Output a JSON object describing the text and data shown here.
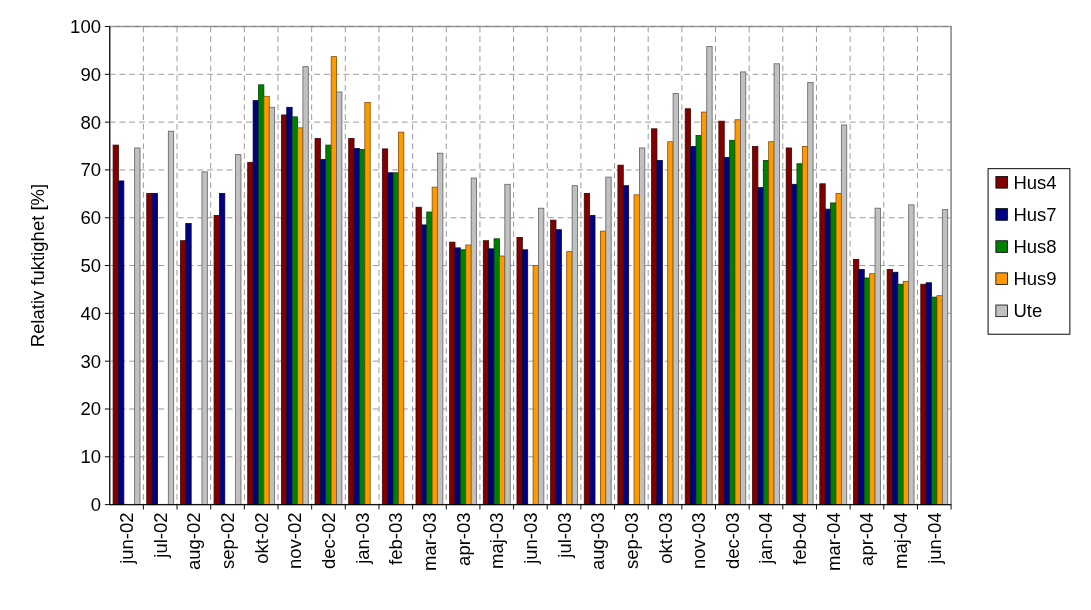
{
  "chart_data": {
    "type": "bar",
    "ylabel": "Relativ fuktighet [%]",
    "categories": [
      "jun-02",
      "jul-02",
      "aug-02",
      "sep-02",
      "okt-02",
      "nov-02",
      "dec-02",
      "jan-03",
      "feb-03",
      "mar-03",
      "apr-03",
      "maj-03",
      "jun-03",
      "jul-03",
      "aug-03",
      "sep-03",
      "okt-03",
      "nov-03",
      "dec-03",
      "jan-04",
      "feb-04",
      "mar-04",
      "apr-04",
      "maj-04",
      "jun-04"
    ],
    "series": [
      {
        "name": "Hus4",
        "color": "#800000",
        "values": [
          75.2,
          65.1,
          55.2,
          60.5,
          71.6,
          81.5,
          76.6,
          76.6,
          74.4,
          62.2,
          54.9,
          55.2,
          55.9,
          59.5,
          65.1,
          71.0,
          78.6,
          82.8,
          80.2,
          74.9,
          74.6,
          67.1,
          51.3,
          49.2,
          46.1
        ]
      },
      {
        "name": "Hus7",
        "color": "#000080",
        "values": [
          67.7,
          65.1,
          58.8,
          65.1,
          84.5,
          83.1,
          72.2,
          74.5,
          69.4,
          58.5,
          53.7,
          53.5,
          53.3,
          57.5,
          60.5,
          66.7,
          72.0,
          74.9,
          72.6,
          66.3,
          67.0,
          61.8,
          49.2,
          48.6,
          46.4
        ]
      },
      {
        "name": "Hus8",
        "color": "#008000",
        "values": [
          null,
          null,
          null,
          null,
          87.8,
          81.1,
          75.2,
          74.3,
          69.4,
          61.2,
          53.3,
          55.6,
          null,
          null,
          null,
          null,
          null,
          77.2,
          76.2,
          72.0,
          71.3,
          63.1,
          47.4,
          46.1,
          43.4
        ]
      },
      {
        "name": "Hus9",
        "color": "#ff9900",
        "values": [
          null,
          null,
          null,
          null,
          85.4,
          78.8,
          93.7,
          84.1,
          77.9,
          66.4,
          54.3,
          52.0,
          50.0,
          52.9,
          57.2,
          64.8,
          75.9,
          82.1,
          80.5,
          75.9,
          74.9,
          65.1,
          48.3,
          46.7,
          43.7
        ]
      },
      {
        "name": "Ute",
        "color": "#c0c0c0",
        "values": [
          74.6,
          78.1,
          69.6,
          73.2,
          83.1,
          91.6,
          86.3,
          null,
          null,
          73.5,
          68.3,
          67.0,
          62.0,
          66.7,
          68.5,
          74.6,
          86.0,
          95.8,
          90.5,
          92.2,
          88.3,
          79.4,
          62.0,
          62.7,
          61.7
        ]
      }
    ],
    "ylim": [
      0,
      100
    ],
    "yticks": [
      0,
      10,
      20,
      30,
      40,
      50,
      60,
      70,
      80,
      90,
      100
    ],
    "grid": true,
    "legend": "right"
  }
}
